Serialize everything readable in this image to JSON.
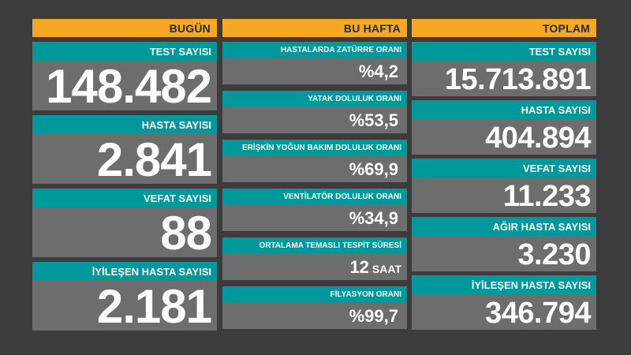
{
  "colors": {
    "background": "#3c3c3c",
    "header": "#f6a723",
    "label": "#00989a",
    "value": "#6d6d6d",
    "text": "#ffffff"
  },
  "today": {
    "header": "BUGÜN",
    "cards": [
      {
        "label": "TEST SAYISI",
        "value": "148.482"
      },
      {
        "label": "HASTA SAYISI",
        "value": "2.841"
      },
      {
        "label": "VEFAT SAYISI",
        "value": "88"
      },
      {
        "label": "İYİLEŞEN HASTA SAYISI",
        "value": "2.181"
      }
    ]
  },
  "week": {
    "header": "BU HAFTA",
    "cards": [
      {
        "label": "HASTALARDA ZATÜRRE ORANI",
        "value": "%4,2",
        "unit": ""
      },
      {
        "label": "YATAK DOLULUK ORANI",
        "value": "%53,5",
        "unit": ""
      },
      {
        "label": "ERİŞKİN YOĞUN BAKIM DOLULUK ORANI",
        "value": "%69,9",
        "unit": ""
      },
      {
        "label": "VENTİLATÖR DOLULUK ORANI",
        "value": "%34,9",
        "unit": ""
      },
      {
        "label": "ORTALAMA TEMASLI TESPİT SÜRESİ",
        "value": "12",
        "unit": "SAAT"
      },
      {
        "label": "FİLYASYON ORANI",
        "value": "%99,7",
        "unit": ""
      }
    ]
  },
  "total": {
    "header": "TOPLAM",
    "cards": [
      {
        "label": "TEST SAYISI",
        "value": "15.713.891"
      },
      {
        "label": "HASTA SAYISI",
        "value": "404.894"
      },
      {
        "label": "VEFAT SAYISI",
        "value": "11.233"
      },
      {
        "label": "AĞIR HASTA SAYISI",
        "value": "3.230"
      },
      {
        "label": "İYİLEŞEN HASTA SAYISI",
        "value": "346.794"
      }
    ]
  }
}
